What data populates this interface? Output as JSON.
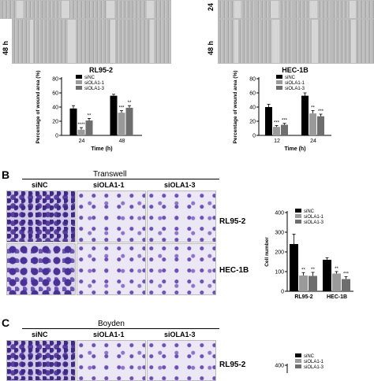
{
  "panel_a": {
    "timepoint_label": "48 h",
    "timepoint_label_cut": "24"
  },
  "panel_b": {
    "letter": "B",
    "title": "Transwell",
    "columns": [
      "siNC",
      "siOLA1-1",
      "siOLA1-3"
    ],
    "rows": [
      "RL95-2",
      "HEC-1B"
    ]
  },
  "panel_c": {
    "letter": "C",
    "title": "Boyden",
    "columns": [
      "siNC",
      "siOLA1-1",
      "siOLA1-3"
    ],
    "rows": [
      "RL95-2"
    ]
  },
  "colors": {
    "siNC": "#000000",
    "siOLA1-1": "#9a9a9a",
    "siOLA1-3": "#6e6e6e"
  },
  "chart_data": [
    {
      "type": "bar",
      "title": "RL95-2",
      "xlabel": "Time (h)",
      "ylabel": "Percentage of wound area (%)",
      "categories": [
        "24",
        "48"
      ],
      "ylim": [
        0,
        80
      ],
      "yticks": [
        "0",
        "20",
        "40",
        "60",
        "80"
      ],
      "legend_position": "top-left",
      "series": [
        {
          "name": "siNC",
          "values": [
            38,
            56
          ],
          "errors": [
            4,
            2
          ]
        },
        {
          "name": "siOLA1-1",
          "values": [
            8,
            32
          ],
          "errors": [
            3,
            3
          ]
        },
        {
          "name": "siOLA1-3",
          "values": [
            21,
            39
          ],
          "errors": [
            3,
            3
          ]
        }
      ],
      "significance": [
        [
          "",
          "****",
          "**"
        ],
        [
          "",
          "***",
          "**"
        ]
      ]
    },
    {
      "type": "bar",
      "title": "HEC-1B",
      "xlabel": "Time (h)",
      "ylabel": "Percentage of wound area (%)",
      "categories": [
        "12",
        "24"
      ],
      "ylim": [
        0,
        80
      ],
      "yticks": [
        "0",
        "20",
        "40",
        "60",
        "80"
      ],
      "legend_position": "top-left",
      "series": [
        {
          "name": "siNC",
          "values": [
            40,
            56
          ],
          "errors": [
            4,
            4
          ]
        },
        {
          "name": "siOLA1-1",
          "values": [
            12,
            31
          ],
          "errors": [
            2,
            4
          ]
        },
        {
          "name": "siOLA1-3",
          "values": [
            15,
            27
          ],
          "errors": [
            2,
            3
          ]
        }
      ],
      "significance": [
        [
          "",
          "***",
          "***"
        ],
        [
          "",
          "**",
          "***"
        ]
      ]
    },
    {
      "type": "bar",
      "title": "",
      "xlabel": "",
      "ylabel": "Cell number",
      "categories": [
        "RL95-2",
        "HEC-1B"
      ],
      "ylim": [
        0,
        400
      ],
      "yticks": [
        "0",
        "100",
        "200",
        "300",
        "400"
      ],
      "legend_position": "top-right",
      "series": [
        {
          "name": "siNC",
          "values": [
            240,
            160
          ],
          "errors": [
            50,
            10
          ]
        },
        {
          "name": "siOLA1-1",
          "values": [
            80,
            90
          ],
          "errors": [
            15,
            10
          ]
        },
        {
          "name": "siOLA1-3",
          "values": [
            78,
            62
          ],
          "errors": [
            18,
            12
          ]
        }
      ],
      "significance": [
        [
          "",
          "**",
          "**"
        ],
        [
          "",
          "**",
          "***"
        ]
      ]
    },
    {
      "type": "bar",
      "title": "",
      "xlabel": "",
      "ylabel": "",
      "categories": [],
      "ylim": [
        0,
        400
      ],
      "yticks": [
        "400"
      ],
      "legend_position": "top-right",
      "series": [
        {
          "name": "siNC",
          "values": []
        },
        {
          "name": "siOLA1-1",
          "values": []
        },
        {
          "name": "siOLA1-3",
          "values": []
        }
      ]
    }
  ]
}
